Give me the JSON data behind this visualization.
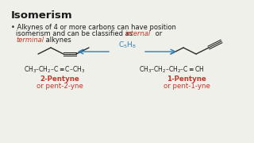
{
  "title": "Isomerism",
  "bg_color": "#f0f0eb",
  "text_color": "#1a1a1a",
  "red_color": "#c0392b",
  "blue_color": "#2980b9",
  "title_fontsize": 9.5,
  "body_fontsize": 6.0,
  "formula_fontsize": 5.5,
  "name_fontsize": 6.2,
  "left_name1": "2-Pentyne",
  "left_name2": "or pent-2-yne",
  "right_name1": "1-Pentyne",
  "right_name2": "or pent-1-yne",
  "left_formula": "CH₃–CH₂–C≡C–CH₃",
  "right_formula": "CH₃–CH₂–CH₂–C≡CH"
}
